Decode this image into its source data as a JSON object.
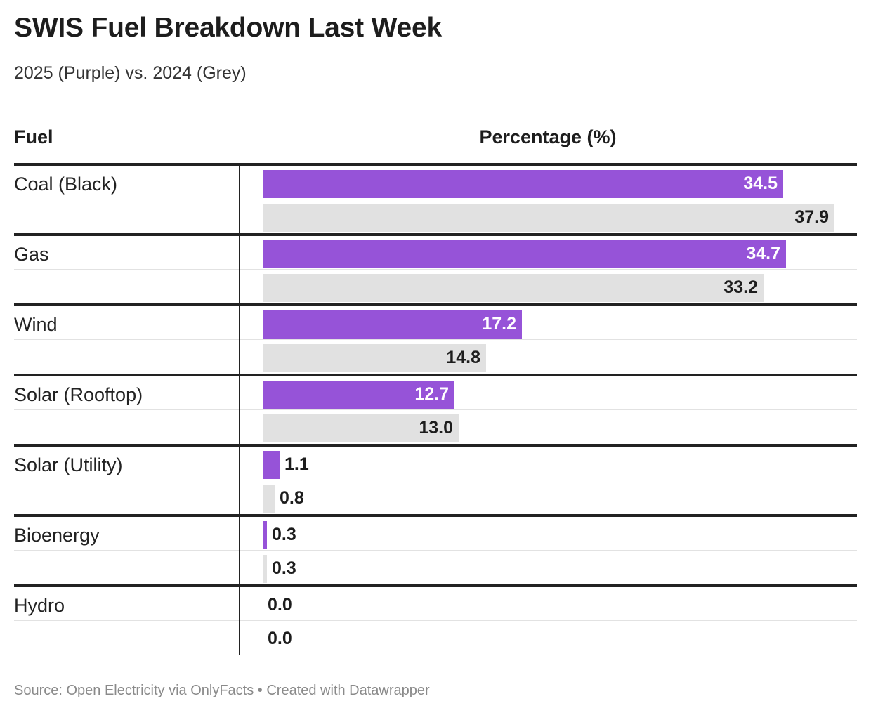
{
  "title": "SWIS Fuel Breakdown Last Week",
  "subtitle": "2025 (Purple) vs. 2024 (Grey)",
  "header": {
    "fuel": "Fuel",
    "percentage": "Percentage (%)"
  },
  "footer": "Source: Open Electricity via OnlyFacts • Created with Datawrapper",
  "colors": {
    "y2025": "#9653d8",
    "y2024": "#e1e1e1",
    "rule": "#222222"
  },
  "chart_data": {
    "type": "bar",
    "title": "SWIS Fuel Breakdown Last Week",
    "subtitle": "2025 (Purple) vs. 2024 (Grey)",
    "xlabel": "Percentage (%)",
    "ylabel": "Fuel",
    "xlim": [
      0,
      37.9
    ],
    "categories": [
      "Coal (Black)",
      "Gas",
      "Wind",
      "Solar (Rooftop)",
      "Solar (Utility)",
      "Bioenergy",
      "Hydro"
    ],
    "series": [
      {
        "values": [
          34.5,
          34.7,
          17.2,
          12.7,
          1.1,
          0.3,
          0.0
        ],
        "labels": [
          "34.5",
          "34.7",
          "17.2",
          "12.7",
          "1.1",
          "0.3",
          "0.0"
        ]
      },
      {
        "values": [
          37.9,
          33.2,
          14.8,
          13.0,
          0.8,
          0.3,
          0.0
        ],
        "labels": [
          "37.9",
          "33.2",
          "14.8",
          "13.0",
          "0.8",
          "0.3",
          "0.0"
        ]
      }
    ]
  }
}
